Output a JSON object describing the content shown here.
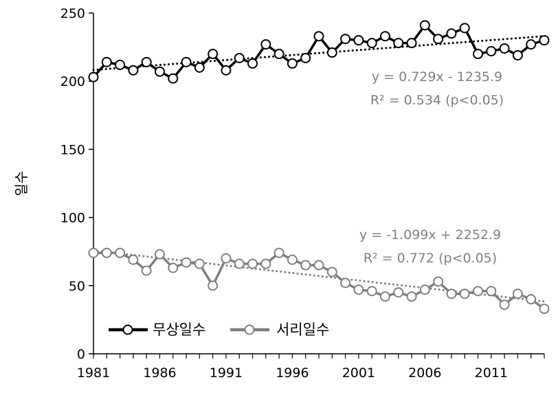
{
  "chart_data": {
    "type": "line",
    "ylabel": "일수",
    "xlabel": "",
    "ylim": [
      0,
      250
    ],
    "yticks": [
      0,
      50,
      100,
      150,
      200,
      250
    ],
    "xlim": [
      1981,
      2015
    ],
    "xticks": [
      1981,
      1986,
      1991,
      1996,
      2001,
      2006,
      2011
    ],
    "grid": false,
    "legend_position": "bottom-left",
    "x": [
      1981,
      1982,
      1983,
      1984,
      1985,
      1986,
      1987,
      1988,
      1989,
      1990,
      1991,
      1992,
      1993,
      1994,
      1995,
      1996,
      1997,
      1998,
      1999,
      2000,
      2001,
      2002,
      2003,
      2004,
      2005,
      2006,
      2007,
      2008,
      2009,
      2010,
      2011,
      2012,
      2013,
      2014,
      2015
    ],
    "series": [
      {
        "name": "무상일수",
        "color": "#000000",
        "values": [
          203,
          214,
          212,
          208,
          214,
          207,
          202,
          214,
          210,
          220,
          208,
          217,
          213,
          227,
          220,
          213,
          217,
          233,
          221,
          231,
          230,
          228,
          233,
          228,
          228,
          241,
          231,
          235,
          239,
          220,
          222,
          224,
          219,
          227,
          230
        ],
        "trend": {
          "slope": 0.729,
          "intercept": -1235.9,
          "equation": "y = 0.729x - 1235.9",
          "r2": "R² = 0.534 (p<0.05)"
        }
      },
      {
        "name": "서리일수",
        "color": "#7f7f7f",
        "values": [
          74,
          74,
          74,
          69,
          61,
          73,
          63,
          67,
          66,
          50,
          70,
          66,
          66,
          66,
          74,
          69,
          65,
          65,
          60,
          52,
          47,
          46,
          42,
          45,
          42,
          47,
          53,
          44,
          44,
          46,
          46,
          36,
          44,
          40,
          33
        ],
        "trend": {
          "slope": -1.099,
          "intercept": 2252.9,
          "equation": "y = -1.099x + 2252.9",
          "r2": "R² = 0.772 (p<0.05)"
        }
      }
    ]
  }
}
